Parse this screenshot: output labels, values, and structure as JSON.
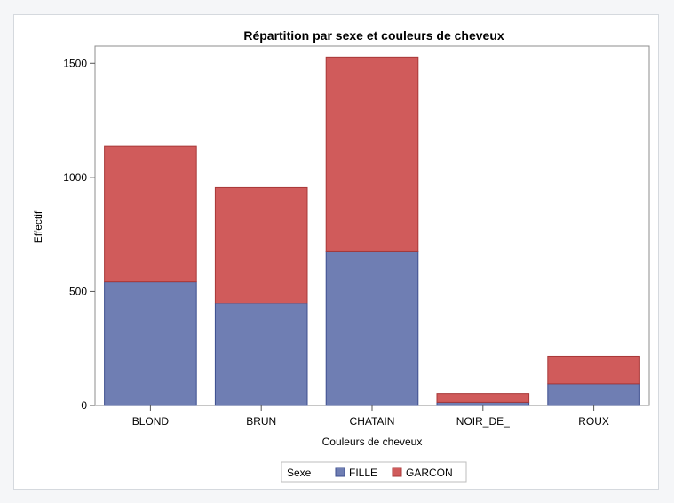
{
  "chart_data": {
    "type": "bar",
    "stacked": true,
    "title": "Répartition par sexe et couleurs de cheveux",
    "xlabel": "Couleurs de cheveux",
    "ylabel": "Effectif",
    "categories": [
      "BLOND",
      "BRUN",
      "CHATAIN",
      "NOIR_DE_",
      "ROUX"
    ],
    "series": [
      {
        "name": "FILLE",
        "color": "#6f7eb3",
        "values": [
          542,
          448,
          675,
          14,
          94
        ]
      },
      {
        "name": "GARCON",
        "color": "#d05b5b",
        "values": [
          593,
          507,
          852,
          38,
          122
        ]
      }
    ],
    "ylim": [
      0,
      1575
    ],
    "yticks": [
      0,
      500,
      1000,
      1500
    ],
    "grid": false,
    "legend": {
      "title": "Sexe",
      "placement": "bottom"
    }
  }
}
